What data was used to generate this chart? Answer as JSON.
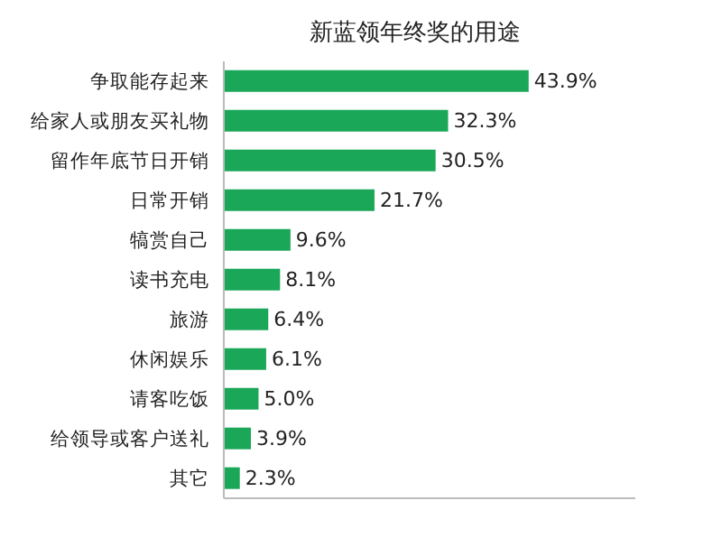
{
  "chart_data": {
    "type": "bar",
    "orientation": "horizontal",
    "title": "新蓝领年终奖的用途",
    "categories": [
      "争取能存起来",
      "给家人或朋友买礼物",
      "留作年底节日开销",
      "日常开销",
      "犒赏自己",
      "读书充电",
      "旅游",
      "休闲娱乐",
      "请客吃饭",
      "给领导或客户送礼",
      "其它"
    ],
    "values": [
      43.9,
      32.3,
      30.5,
      21.7,
      9.6,
      8.1,
      6.4,
      6.1,
      5.0,
      3.9,
      2.3
    ],
    "value_labels": [
      "43.9%",
      "32.3%",
      "30.5%",
      "21.7%",
      "9.6%",
      "8.1%",
      "6.4%",
      "6.1%",
      "5.0%",
      "3.9%",
      "2.3%"
    ],
    "color": "#1aa758",
    "tick_labels": "y"
  }
}
